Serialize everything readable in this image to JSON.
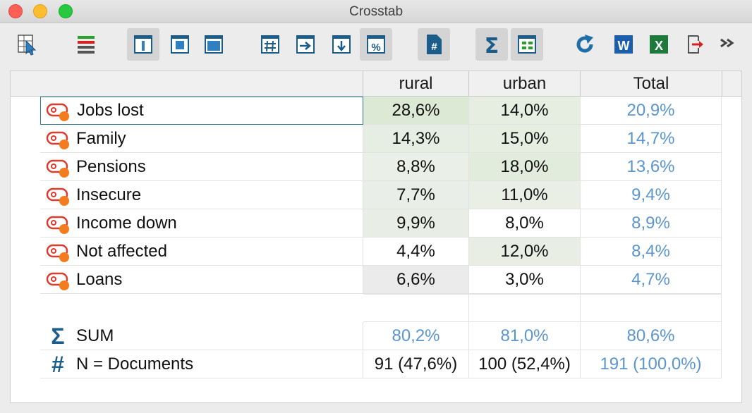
{
  "window": {
    "title": "Crosstab"
  },
  "toolbar": {
    "buttons": [
      {
        "name": "select-documents-button",
        "icon": "table-cursor-icon"
      },
      {
        "name": "code-list-button",
        "icon": "colored-bars-icon"
      },
      {
        "name": "layout-column-button",
        "icon": "column-layout-icon",
        "pressed": true
      },
      {
        "name": "layout-box-button",
        "icon": "box-layout-icon"
      },
      {
        "name": "layout-full-button",
        "icon": "full-layout-icon"
      },
      {
        "name": "absolute-frequency-button",
        "icon": "grid-hash-icon"
      },
      {
        "name": "row-percent-button",
        "icon": "arrow-right-icon"
      },
      {
        "name": "column-percent-button",
        "icon": "arrow-down-icon"
      },
      {
        "name": "total-percent-button",
        "icon": "percent-icon",
        "pressed": true
      },
      {
        "name": "document-count-button",
        "icon": "document-hash-icon",
        "pressed": true
      },
      {
        "name": "sum-button",
        "icon": "sigma-icon",
        "pressed": true
      },
      {
        "name": "heatmap-button",
        "icon": "heatmap-grid-icon",
        "pressed": true
      },
      {
        "name": "refresh-button",
        "icon": "refresh-icon"
      },
      {
        "name": "export-word-button",
        "icon": "word-icon",
        "label": "W"
      },
      {
        "name": "export-excel-button",
        "icon": "excel-icon",
        "label": "X"
      },
      {
        "name": "export-button",
        "icon": "export-icon"
      },
      {
        "name": "more-button",
        "icon": "double-chevron-icon"
      }
    ]
  },
  "table": {
    "columns": [
      "rural",
      "urban",
      "Total"
    ],
    "rows": [
      {
        "label": "Jobs lost",
        "rural": "28,6%",
        "urban": "14,0%",
        "total": "20,9%",
        "rural_shade": "#dce9d4",
        "urban_shade": "#e5eee0"
      },
      {
        "label": "Family",
        "rural": "14,3%",
        "urban": "15,0%",
        "total": "14,7%",
        "rural_shade": "#e6ede3",
        "urban_shade": "#e5eee0"
      },
      {
        "label": "Pensions",
        "rural": "8,8%",
        "urban": "18,0%",
        "total": "13,6%",
        "rural_shade": "#eaefe8",
        "urban_shade": "#e2ecdc"
      },
      {
        "label": "Insecure",
        "rural": "7,7%",
        "urban": "11,0%",
        "total": "9,4%",
        "rural_shade": "#eaeee8",
        "urban_shade": "#eaefe6"
      },
      {
        "label": "Income down",
        "rural": "9,9%",
        "urban": "8,0%",
        "total": "8,9%",
        "rural_shade": "#e8eee5",
        "urban_shade": "#ffffff"
      },
      {
        "label": "Not affected",
        "rural": "4,4%",
        "urban": "12,0%",
        "total": "8,4%",
        "rural_shade": "#ffffff",
        "urban_shade": "#e8eee4"
      },
      {
        "label": "Loans",
        "rural": "6,6%",
        "urban": "3,0%",
        "total": "4,7%",
        "rural_shade": "#ebebeb",
        "urban_shade": "#ffffff"
      }
    ],
    "sum": {
      "label": "SUM",
      "rural": "80,2%",
      "urban": "81,0%",
      "total": "80,6%"
    },
    "n_docs": {
      "label": "N = Documents",
      "rural": "91 (47,6%)",
      "urban": "100 (52,4%)",
      "total": "191 (100,0%)"
    }
  },
  "colors": {
    "accent": "#1a5c8a",
    "total_text": "#5b95cd",
    "code_icon": "#e03a2f",
    "code_dot": "#f47c20"
  },
  "symbols": {
    "sum": "Σ",
    "count": "#"
  }
}
